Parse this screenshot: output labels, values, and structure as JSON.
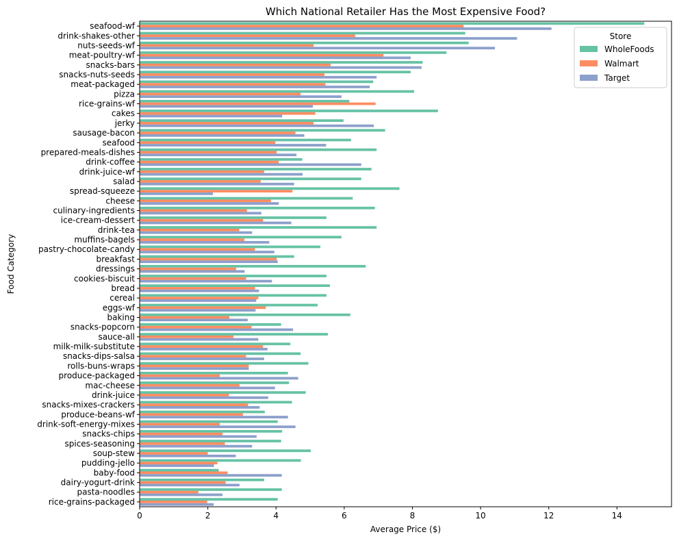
{
  "chart_data": {
    "type": "bar",
    "orientation": "horizontal",
    "title": "Which National Retailer Has the Most Expensive Food?",
    "xlabel": "Average Price ($)",
    "ylabel": "Food Category",
    "xlim": [
      0,
      15.6
    ],
    "xticks": [
      0,
      2,
      4,
      6,
      8,
      10,
      12,
      14
    ],
    "grid": false,
    "legend": {
      "title": "Store",
      "position": "top-right"
    },
    "categories": [
      "seafood-wf",
      "drink-shakes-other",
      "nuts-seeds-wf",
      "meat-poultry-wf",
      "snacks-bars",
      "snacks-nuts-seeds",
      "meat-packaged",
      "pizza",
      "rice-grains-wf",
      "cakes",
      "jerky",
      "sausage-bacon",
      "seafood",
      "prepared-meals-dishes",
      "drink-coffee",
      "drink-juice-wf",
      "salad",
      "spread-squeeze",
      "cheese",
      "culinary-ingredients",
      "ice-cream-dessert",
      "drink-tea",
      "muffins-bagels",
      "pastry-chocolate-candy",
      "breakfast",
      "dressings",
      "cookies-biscuit",
      "bread",
      "cereal",
      "eggs-wf",
      "baking",
      "snacks-popcorn",
      "sauce-all",
      "milk-milk-substitute",
      "snacks-dips-salsa",
      "rolls-buns-wraps",
      "produce-packaged",
      "mac-cheese",
      "drink-juice",
      "snacks-mixes-crackers",
      "produce-beans-wf",
      "drink-soft-energy-mixes",
      "snacks-chips",
      "spices-seasoning",
      "soup-stew",
      "pudding-jello",
      "baby-food",
      "dairy-yogurt-drink",
      "pasta-noodles",
      "rice-grains-packaged"
    ],
    "series": [
      {
        "name": "WholeFoods",
        "color": "#66c2a5",
        "values": [
          14.8,
          9.55,
          9.65,
          9.0,
          8.3,
          7.95,
          6.85,
          8.05,
          6.15,
          8.75,
          5.98,
          7.2,
          6.2,
          6.95,
          4.77,
          6.8,
          6.5,
          7.62,
          6.25,
          6.9,
          5.48,
          6.95,
          5.92,
          5.3,
          4.53,
          6.63,
          5.48,
          5.58,
          5.48,
          5.22,
          6.18,
          4.15,
          5.52,
          4.42,
          4.72,
          4.95,
          4.35,
          4.38,
          4.87,
          4.47,
          3.67,
          4.05,
          4.18,
          4.15,
          5.02,
          4.73,
          2.32,
          3.65,
          4.17,
          4.05
        ]
      },
      {
        "name": "Walmart",
        "color": "#fc8d62",
        "values": [
          9.5,
          6.32,
          5.1,
          7.15,
          5.6,
          5.42,
          5.45,
          4.72,
          6.92,
          5.15,
          5.1,
          4.57,
          3.98,
          4.02,
          4.08,
          3.65,
          3.55,
          4.48,
          3.85,
          3.15,
          3.62,
          2.92,
          3.07,
          3.38,
          4.02,
          2.83,
          3.12,
          3.38,
          3.48,
          3.7,
          2.63,
          3.28,
          2.75,
          3.62,
          3.12,
          3.2,
          2.35,
          2.93,
          2.62,
          3.18,
          3.03,
          2.35,
          2.43,
          2.5,
          2.0,
          2.28,
          2.58,
          2.52,
          1.72,
          1.98
        ]
      },
      {
        "name": "Target",
        "color": "#8da0cb",
        "values": [
          12.08,
          11.07,
          10.42,
          7.95,
          8.27,
          6.95,
          6.75,
          5.92,
          5.08,
          4.18,
          6.87,
          4.83,
          5.47,
          4.6,
          6.5,
          4.78,
          4.53,
          2.15,
          4.08,
          3.57,
          4.45,
          3.3,
          3.8,
          3.95,
          4.05,
          3.08,
          3.88,
          3.5,
          3.42,
          3.4,
          3.17,
          4.5,
          3.48,
          3.75,
          3.65,
          3.2,
          4.65,
          3.97,
          3.77,
          3.52,
          4.35,
          4.57,
          3.43,
          3.3,
          2.82,
          2.18,
          4.17,
          2.93,
          2.43,
          2.17
        ]
      }
    ]
  }
}
